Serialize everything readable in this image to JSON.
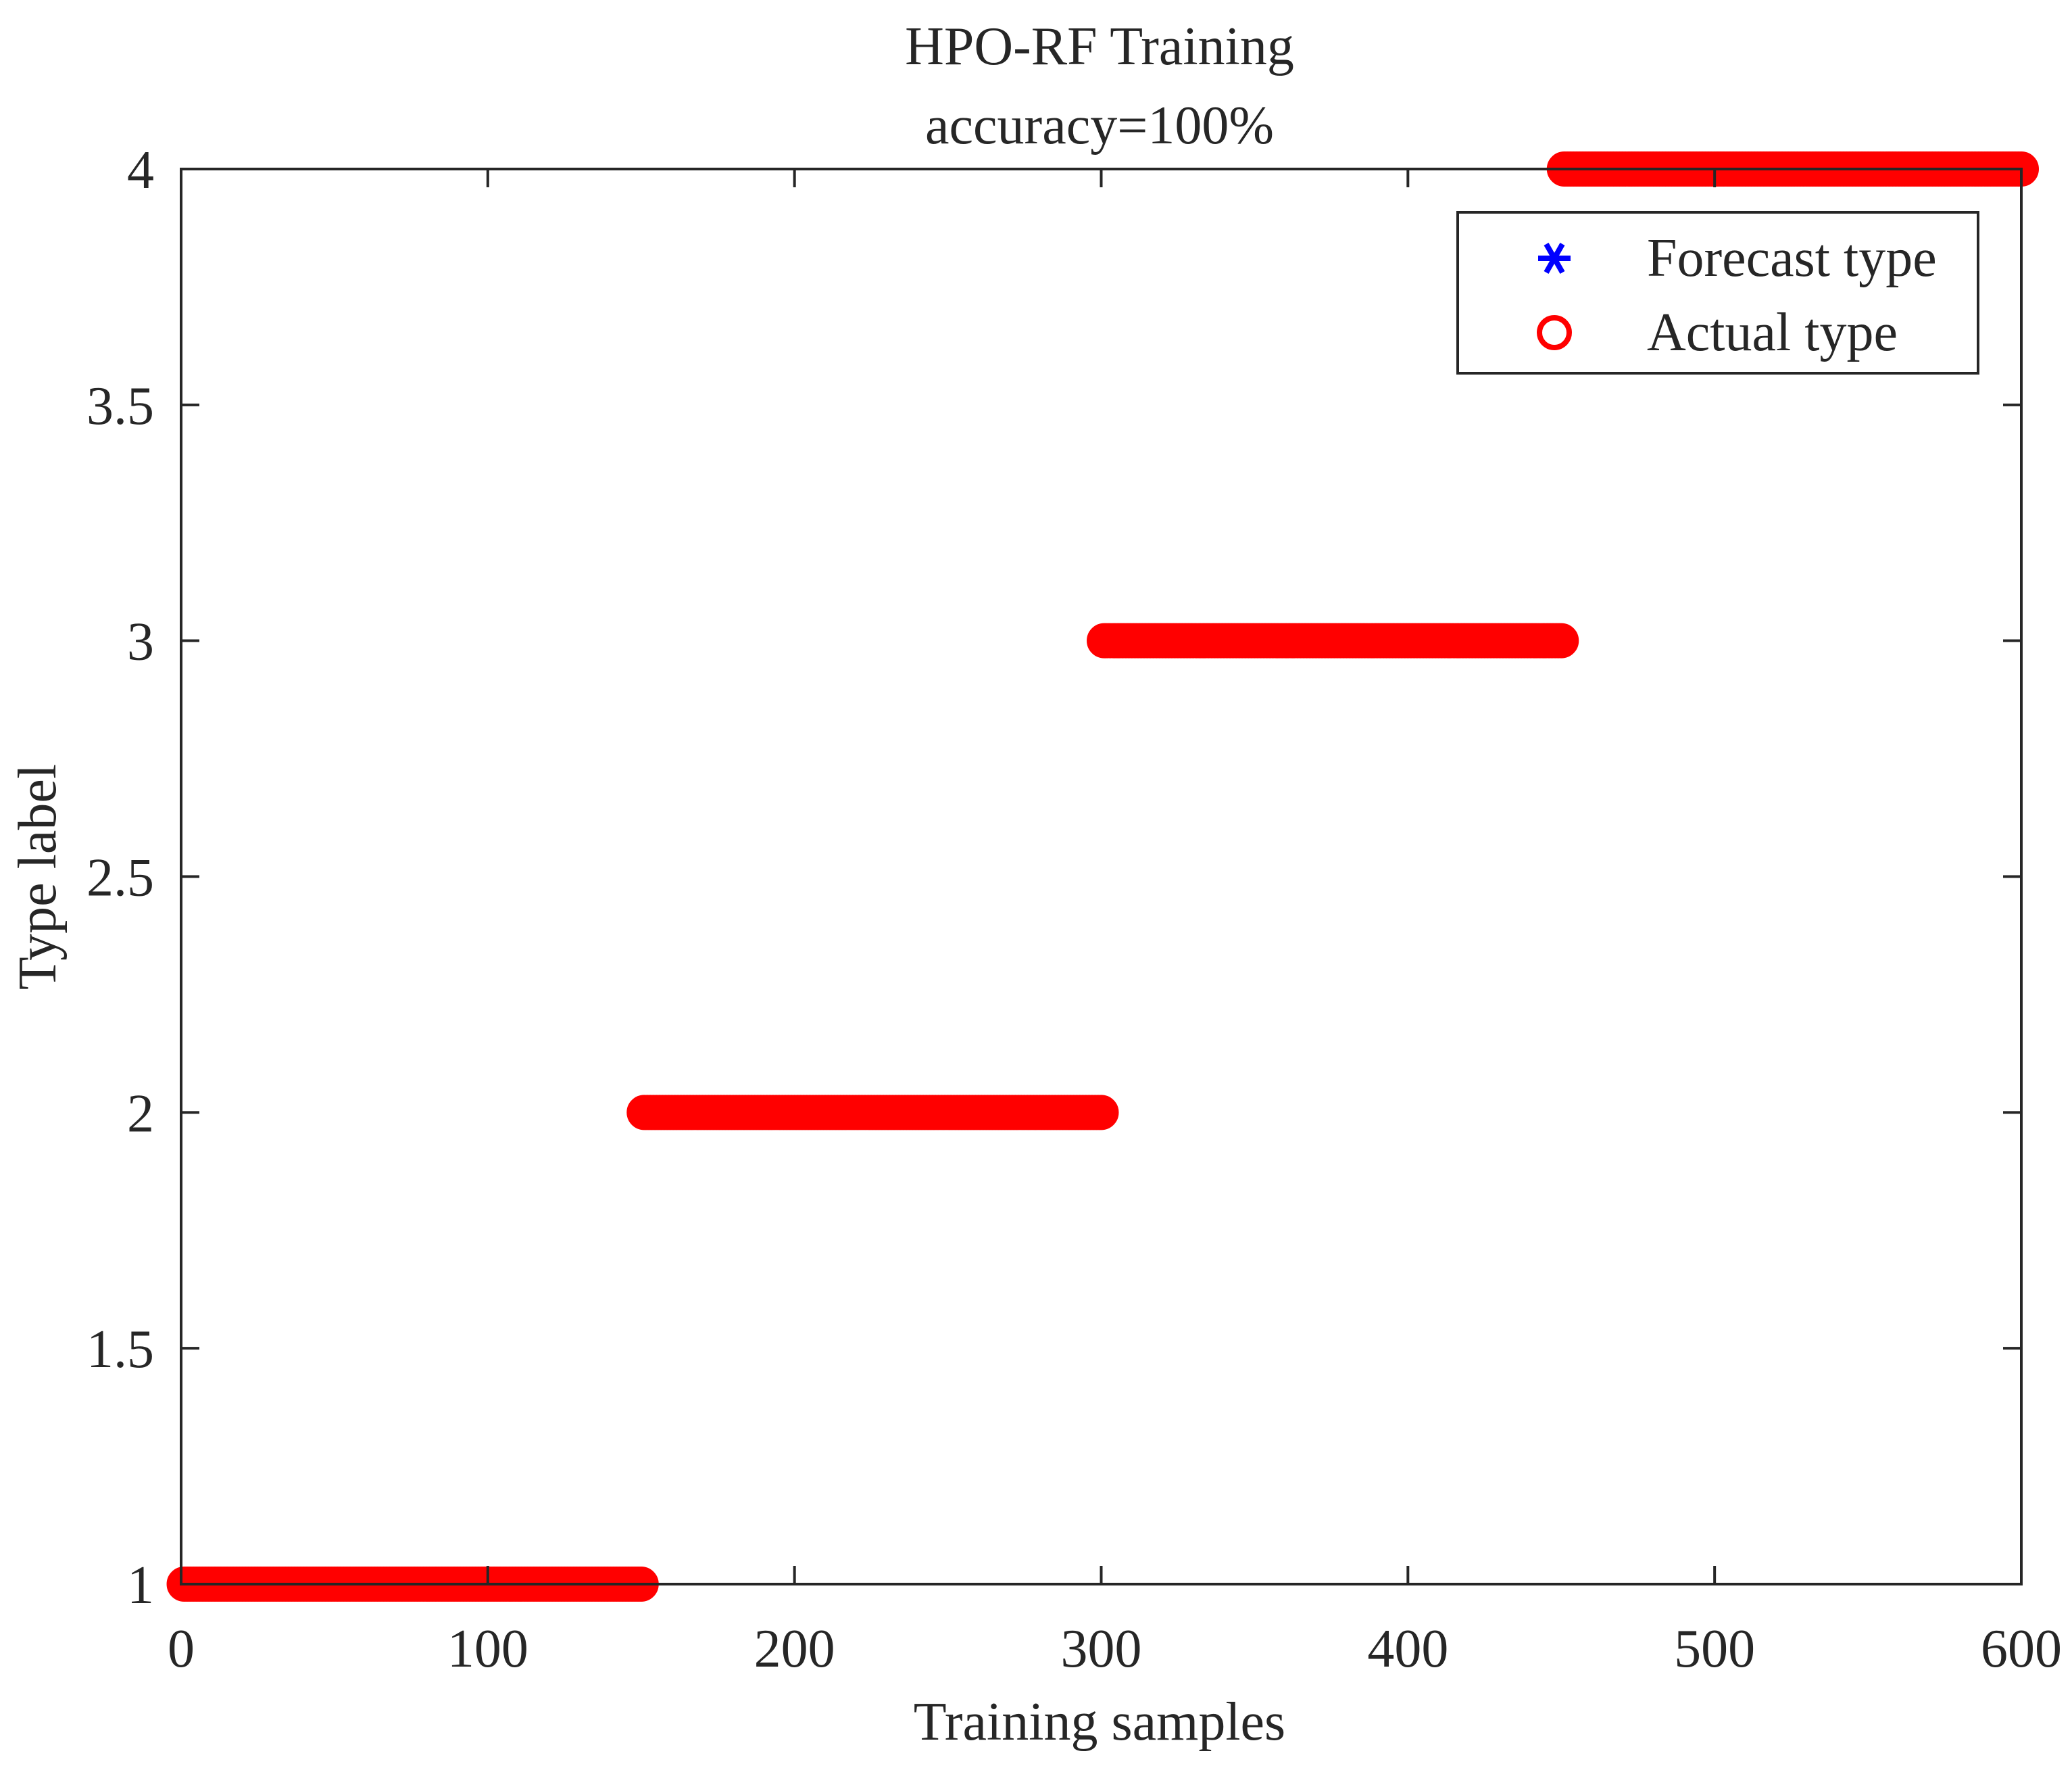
{
  "chart_data": {
    "type": "scatter",
    "title": "HPO-RF Training",
    "subtitle": "accuracy=100%",
    "xlabel": "Training samples",
    "ylabel": "Type label",
    "xlim": [
      0,
      600
    ],
    "ylim": [
      1,
      4
    ],
    "xticks": [
      0,
      100,
      200,
      300,
      400,
      500,
      600
    ],
    "yticks": [
      1,
      1.5,
      2,
      2.5,
      3,
      3.5,
      4
    ],
    "xtick_labels": [
      "0",
      "100",
      "200",
      "300",
      "400",
      "500",
      "600"
    ],
    "ytick_labels": [
      "1",
      "1.5",
      "2",
      "2.5",
      "3",
      "3.5",
      "4"
    ],
    "grid": false,
    "legend_position": "top-right",
    "segments": [
      {
        "label": 1,
        "x_start": 1,
        "x_end": 150
      },
      {
        "label": 2,
        "x_start": 151,
        "x_end": 300
      },
      {
        "label": 3,
        "x_start": 301,
        "x_end": 450
      },
      {
        "label": 4,
        "x_start": 451,
        "x_end": 600
      }
    ],
    "series": [
      {
        "name": "Forecast type",
        "marker": "asterisk",
        "color": "#0000ff"
      },
      {
        "name": "Actual type",
        "marker": "circle",
        "color": "#ff0000"
      }
    ]
  }
}
